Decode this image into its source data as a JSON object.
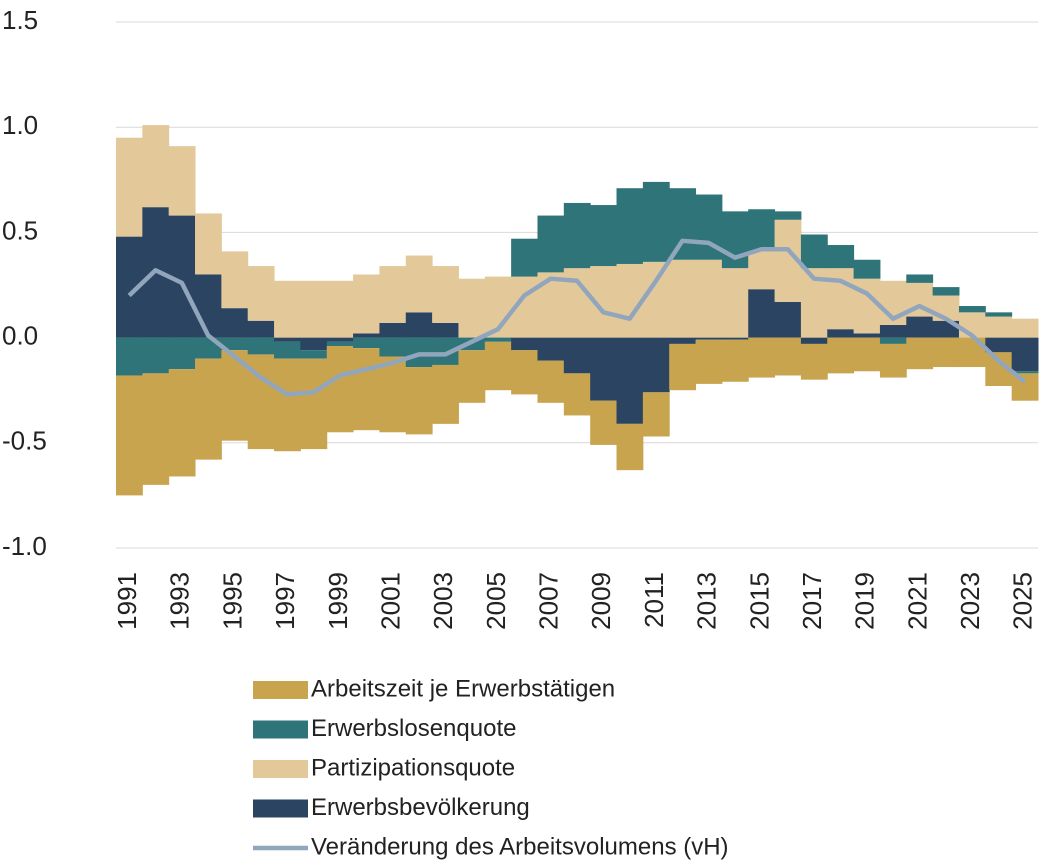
{
  "chart_data": {
    "type": "stacked-bar-line",
    "categories": [
      "1991",
      null,
      "1993",
      null,
      "1995",
      null,
      "1997",
      null,
      "1999",
      null,
      "2001",
      null,
      "2003",
      null,
      "2005",
      null,
      "2007",
      null,
      "2009",
      null,
      "2011",
      null,
      "2013",
      null,
      "2015",
      null,
      "2017",
      null,
      "2019",
      null,
      "2021",
      null,
      "2023",
      null,
      "2025"
    ],
    "series": [
      {
        "name": "Arbeitszeit je Erwerbstätigen",
        "color": "#c9a44e",
        "values": [
          -0.57,
          -0.53,
          -0.51,
          -0.48,
          -0.43,
          -0.45,
          -0.44,
          -0.43,
          -0.41,
          -0.39,
          -0.36,
          -0.32,
          -0.28,
          -0.25,
          -0.23,
          -0.21,
          -0.2,
          -0.2,
          -0.21,
          -0.22,
          -0.21,
          -0.22,
          -0.21,
          -0.2,
          -0.19,
          -0.18,
          -0.17,
          -0.17,
          -0.16,
          -0.16,
          -0.15,
          -0.14,
          -0.14,
          -0.16,
          -0.13
        ]
      },
      {
        "name": "Erwerbslosenquote",
        "color": "#2e7478",
        "values": [
          -0.18,
          -0.17,
          -0.15,
          -0.1,
          -0.06,
          -0.08,
          -0.08,
          -0.04,
          -0.02,
          -0.05,
          -0.09,
          -0.14,
          -0.13,
          -0.06,
          -0.02,
          0.18,
          0.27,
          0.31,
          0.29,
          0.36,
          0.38,
          0.34,
          0.31,
          0.27,
          0.2,
          0.04,
          0.16,
          0.11,
          0.09,
          -0.03,
          0.04,
          0.04,
          0.03,
          0.02,
          -0.01
        ]
      },
      {
        "name": "Partizipationsquote",
        "color": "#e3c99a",
        "values": [
          0.47,
          0.39,
          0.33,
          0.29,
          0.27,
          0.26,
          0.27,
          0.27,
          0.27,
          0.28,
          0.27,
          0.27,
          0.27,
          0.28,
          0.29,
          0.29,
          0.31,
          0.33,
          0.34,
          0.35,
          0.36,
          0.37,
          0.37,
          0.33,
          0.18,
          0.39,
          0.33,
          0.29,
          0.26,
          0.21,
          0.16,
          0.12,
          0.12,
          0.1,
          0.09
        ]
      },
      {
        "name": "Erwerbsbevölkerung",
        "color": "#2a4462",
        "values": [
          0.48,
          0.62,
          0.58,
          0.3,
          0.14,
          0.08,
          -0.02,
          -0.06,
          -0.02,
          0.02,
          0.07,
          0.12,
          0.07,
          0,
          0,
          -0.06,
          -0.11,
          -0.17,
          -0.3,
          -0.41,
          -0.26,
          -0.03,
          -0.01,
          -0.01,
          0.23,
          0.17,
          -0.03,
          0.04,
          0.02,
          0.06,
          0.1,
          0.08,
          0,
          -0.07,
          -0.16
        ]
      },
      {
        "name": "Veränderung des Arbeitsvolumens (vH)",
        "color": "#91a6bd",
        "line": true,
        "values": [
          0.2,
          0.32,
          0.26,
          0.01,
          -0.09,
          -0.19,
          -0.27,
          -0.26,
          -0.18,
          -0.15,
          -0.12,
          -0.08,
          -0.08,
          -0.02,
          0.04,
          0.2,
          0.28,
          0.27,
          0.12,
          0.09,
          0.27,
          0.46,
          0.45,
          0.38,
          0.42,
          0.42,
          0.28,
          0.27,
          0.21,
          0.09,
          0.15,
          0.09,
          0.01,
          -0.11,
          -0.21
        ]
      }
    ],
    "ylim": [
      -1,
      1.5
    ],
    "yticks": [
      {
        "value": -1,
        "label": "-1.0"
      },
      -0.5,
      {
        "value": 0,
        "label": "0.0"
      },
      0.5,
      {
        "value": 1,
        "label": "1.0"
      },
      1.5
    ],
    "grid": true,
    "legend": "bottom"
  }
}
